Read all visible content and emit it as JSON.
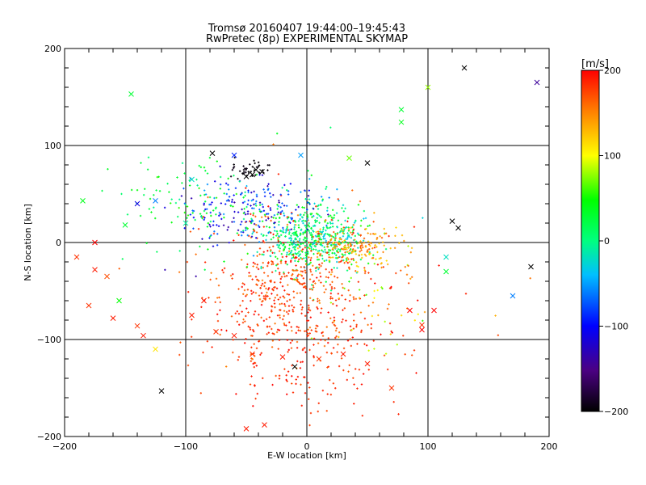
{
  "chart_data": {
    "type": "scatter",
    "title": "Tromsø 20160407 19:44:00–19:45:43",
    "subtitle": "RwPretec (8p) EXPERIMENTAL SKYMAP",
    "xlabel": "E-W location [km]",
    "ylabel": "N-S location [km]",
    "xlim": [
      -200,
      200
    ],
    "ylim": [
      -200,
      200
    ],
    "xticks": [
      "−200",
      "−100",
      "0",
      "100",
      "200"
    ],
    "yticks": [
      "−200",
      "−100",
      "0",
      "100",
      "200"
    ],
    "grid": true,
    "colorbar": {
      "label": "[m/s]",
      "range": [
        -200,
        200
      ],
      "ticks": [
        "200",
        "100",
        "0",
        "−100",
        "−200"
      ],
      "colors": [
        "#000000",
        "#4b0082",
        "#0000ff",
        "#00bfff",
        "#00ff80",
        "#00ff00",
        "#ffff00",
        "#ff8000",
        "#ff0000"
      ]
    },
    "series": [
      {
        "marker": "x",
        "points": [
          [
            -145,
            153
          ],
          [
            100,
            160
          ],
          [
            78,
            137
          ],
          [
            78,
            124
          ],
          [
            -125,
            43
          ],
          [
            -185,
            43
          ],
          [
            -140,
            40
          ],
          [
            -95,
            65
          ],
          [
            -78,
            92
          ],
          [
            -60,
            90
          ],
          [
            -5,
            90
          ],
          [
            35,
            87
          ],
          [
            -45,
            70
          ],
          [
            -42,
            75
          ],
          [
            -50,
            68
          ],
          [
            -37,
            73
          ],
          [
            -100,
            20
          ],
          [
            -150,
            18
          ],
          [
            -175,
            0
          ],
          [
            -190,
            -15
          ],
          [
            -175,
            -28
          ],
          [
            -165,
            -35
          ],
          [
            -155,
            -60
          ],
          [
            -180,
            -65
          ],
          [
            -160,
            -78
          ],
          [
            -140,
            -86
          ],
          [
            -135,
            -96
          ],
          [
            -125,
            -110
          ],
          [
            -85,
            -60
          ],
          [
            -95,
            -75
          ],
          [
            -75,
            -92
          ],
          [
            -60,
            -96
          ],
          [
            -45,
            -115
          ],
          [
            -20,
            -118
          ],
          [
            10,
            -120
          ],
          [
            30,
            -115
          ],
          [
            50,
            -125
          ],
          [
            70,
            -150
          ],
          [
            -120,
            -153
          ],
          [
            120,
            22
          ],
          [
            125,
            15
          ],
          [
            185,
            -25
          ],
          [
            170,
            -55
          ],
          [
            115,
            -15
          ],
          [
            115,
            -30
          ],
          [
            105,
            -70
          ],
          [
            85,
            -70
          ],
          [
            95,
            -85
          ],
          [
            130,
            180
          ],
          [
            190,
            165
          ],
          [
            -50,
            -192
          ],
          [
            -35,
            -188
          ],
          [
            50,
            82
          ],
          [
            -10,
            -128
          ],
          [
            95,
            -90
          ]
        ],
        "values": [
          30,
          80,
          30,
          40,
          -60,
          40,
          -110,
          -20,
          -200,
          -90,
          -50,
          70,
          -200,
          -200,
          -200,
          -200,
          -10,
          30,
          200,
          180,
          190,
          170,
          50,
          180,
          190,
          180,
          190,
          110,
          190,
          190,
          180,
          190,
          180,
          190,
          180,
          190,
          190,
          180,
          -200,
          -200,
          -200,
          -200,
          -60,
          -20,
          30,
          200,
          200,
          180,
          -200,
          -140,
          190,
          190,
          -200,
          -200,
          200
        ]
      },
      {
        "marker": "dot",
        "region": "dense cloud centred near (0, 0) spreading to (-100..100, -160..80)",
        "clusters": [
          {
            "cx": 5,
            "cy": 5,
            "sx": 22,
            "sy": 18,
            "n": 520,
            "values": [
              -40,
              60
            ]
          },
          {
            "cx": -15,
            "cy": -45,
            "sx": 32,
            "sy": 38,
            "n": 520,
            "values": [
              150,
              200
            ]
          },
          {
            "cx": -45,
            "cy": 35,
            "sx": 28,
            "sy": 18,
            "n": 200,
            "values": [
              -140,
              -40
            ]
          },
          {
            "cx": 40,
            "cy": -5,
            "sx": 18,
            "sy": 12,
            "n": 160,
            "values": [
              110,
              170
            ]
          },
          {
            "cx": -90,
            "cy": 40,
            "sx": 45,
            "sy": 25,
            "n": 120,
            "values": [
              -10,
              60
            ]
          },
          {
            "cx": 0,
            "cy": -110,
            "sx": 40,
            "sy": 35,
            "n": 150,
            "values": [
              170,
              200
            ]
          },
          {
            "cx": -50,
            "cy": 75,
            "sx": 10,
            "sy": 5,
            "n": 40,
            "values": [
              -200,
              -190
            ]
          },
          {
            "cx": 60,
            "cy": -60,
            "sx": 40,
            "sy": 30,
            "n": 70,
            "values": [
              60,
              200
            ]
          }
        ]
      }
    ]
  }
}
